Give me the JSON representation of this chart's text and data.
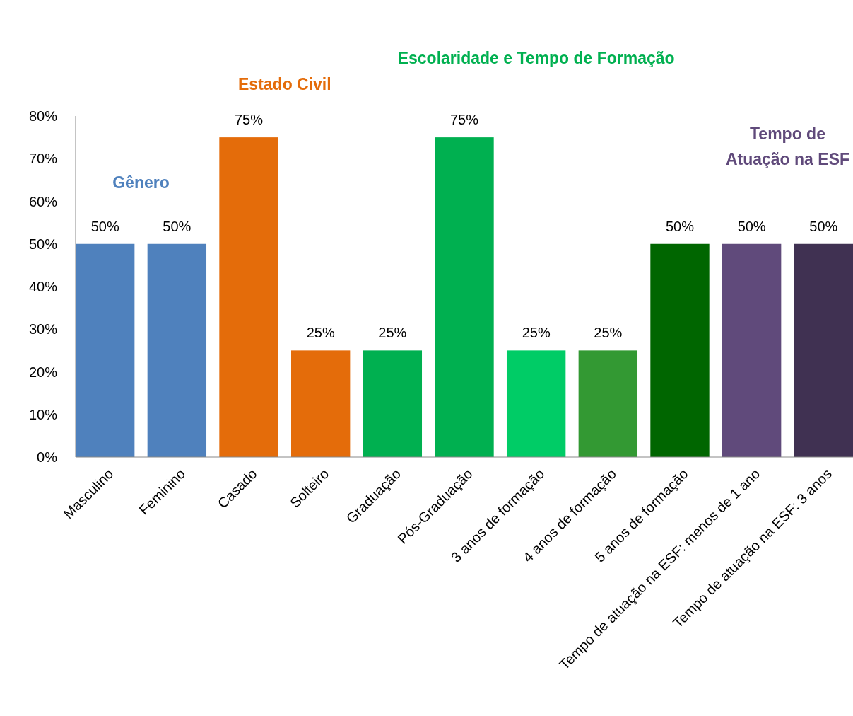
{
  "chart_data": {
    "type": "bar",
    "categories": [
      "Masculino",
      "Feminino",
      "Casado",
      "Solteiro",
      "Graduação",
      "Pós-Graduação",
      "3 anos de formação",
      "4 anos de formação",
      "5 anos de formação",
      "Tempo de atuação na ESF: menos de 1 ano",
      "Tempo de atuação na ESF: 3 anos"
    ],
    "values": [
      50,
      50,
      75,
      25,
      25,
      75,
      25,
      25,
      50,
      50,
      50
    ],
    "colors": [
      "#4f81bd",
      "#4f81bd",
      "#e46c0a",
      "#e46c0a",
      "#00b050",
      "#00b050",
      "#00cc66",
      "#339933",
      "#006600",
      "#604a7b",
      "#403152"
    ],
    "value_labels": [
      "50%",
      "50%",
      "75%",
      "25%",
      "25%",
      "75%",
      "25%",
      "25%",
      "50%",
      "50%",
      "50%"
    ],
    "ylim": [
      0,
      80
    ],
    "yticks": [
      {
        "value": 0,
        "label": "0%"
      },
      {
        "value": 10,
        "label": "10%"
      },
      {
        "value": 20,
        "label": "20%"
      },
      {
        "value": 30,
        "label": "30%"
      },
      {
        "value": 40,
        "label": "40%"
      },
      {
        "value": 50,
        "label": "50%"
      },
      {
        "value": 60,
        "label": "60%"
      },
      {
        "value": 70,
        "label": "70%"
      },
      {
        "value": 80,
        "label": "80%"
      }
    ],
    "annotations": [
      "Gênero",
      "Estado Civil",
      "Escolaridade e Tempo de Formação",
      "Tempo de Atuação na ESF"
    ],
    "grid": false
  }
}
